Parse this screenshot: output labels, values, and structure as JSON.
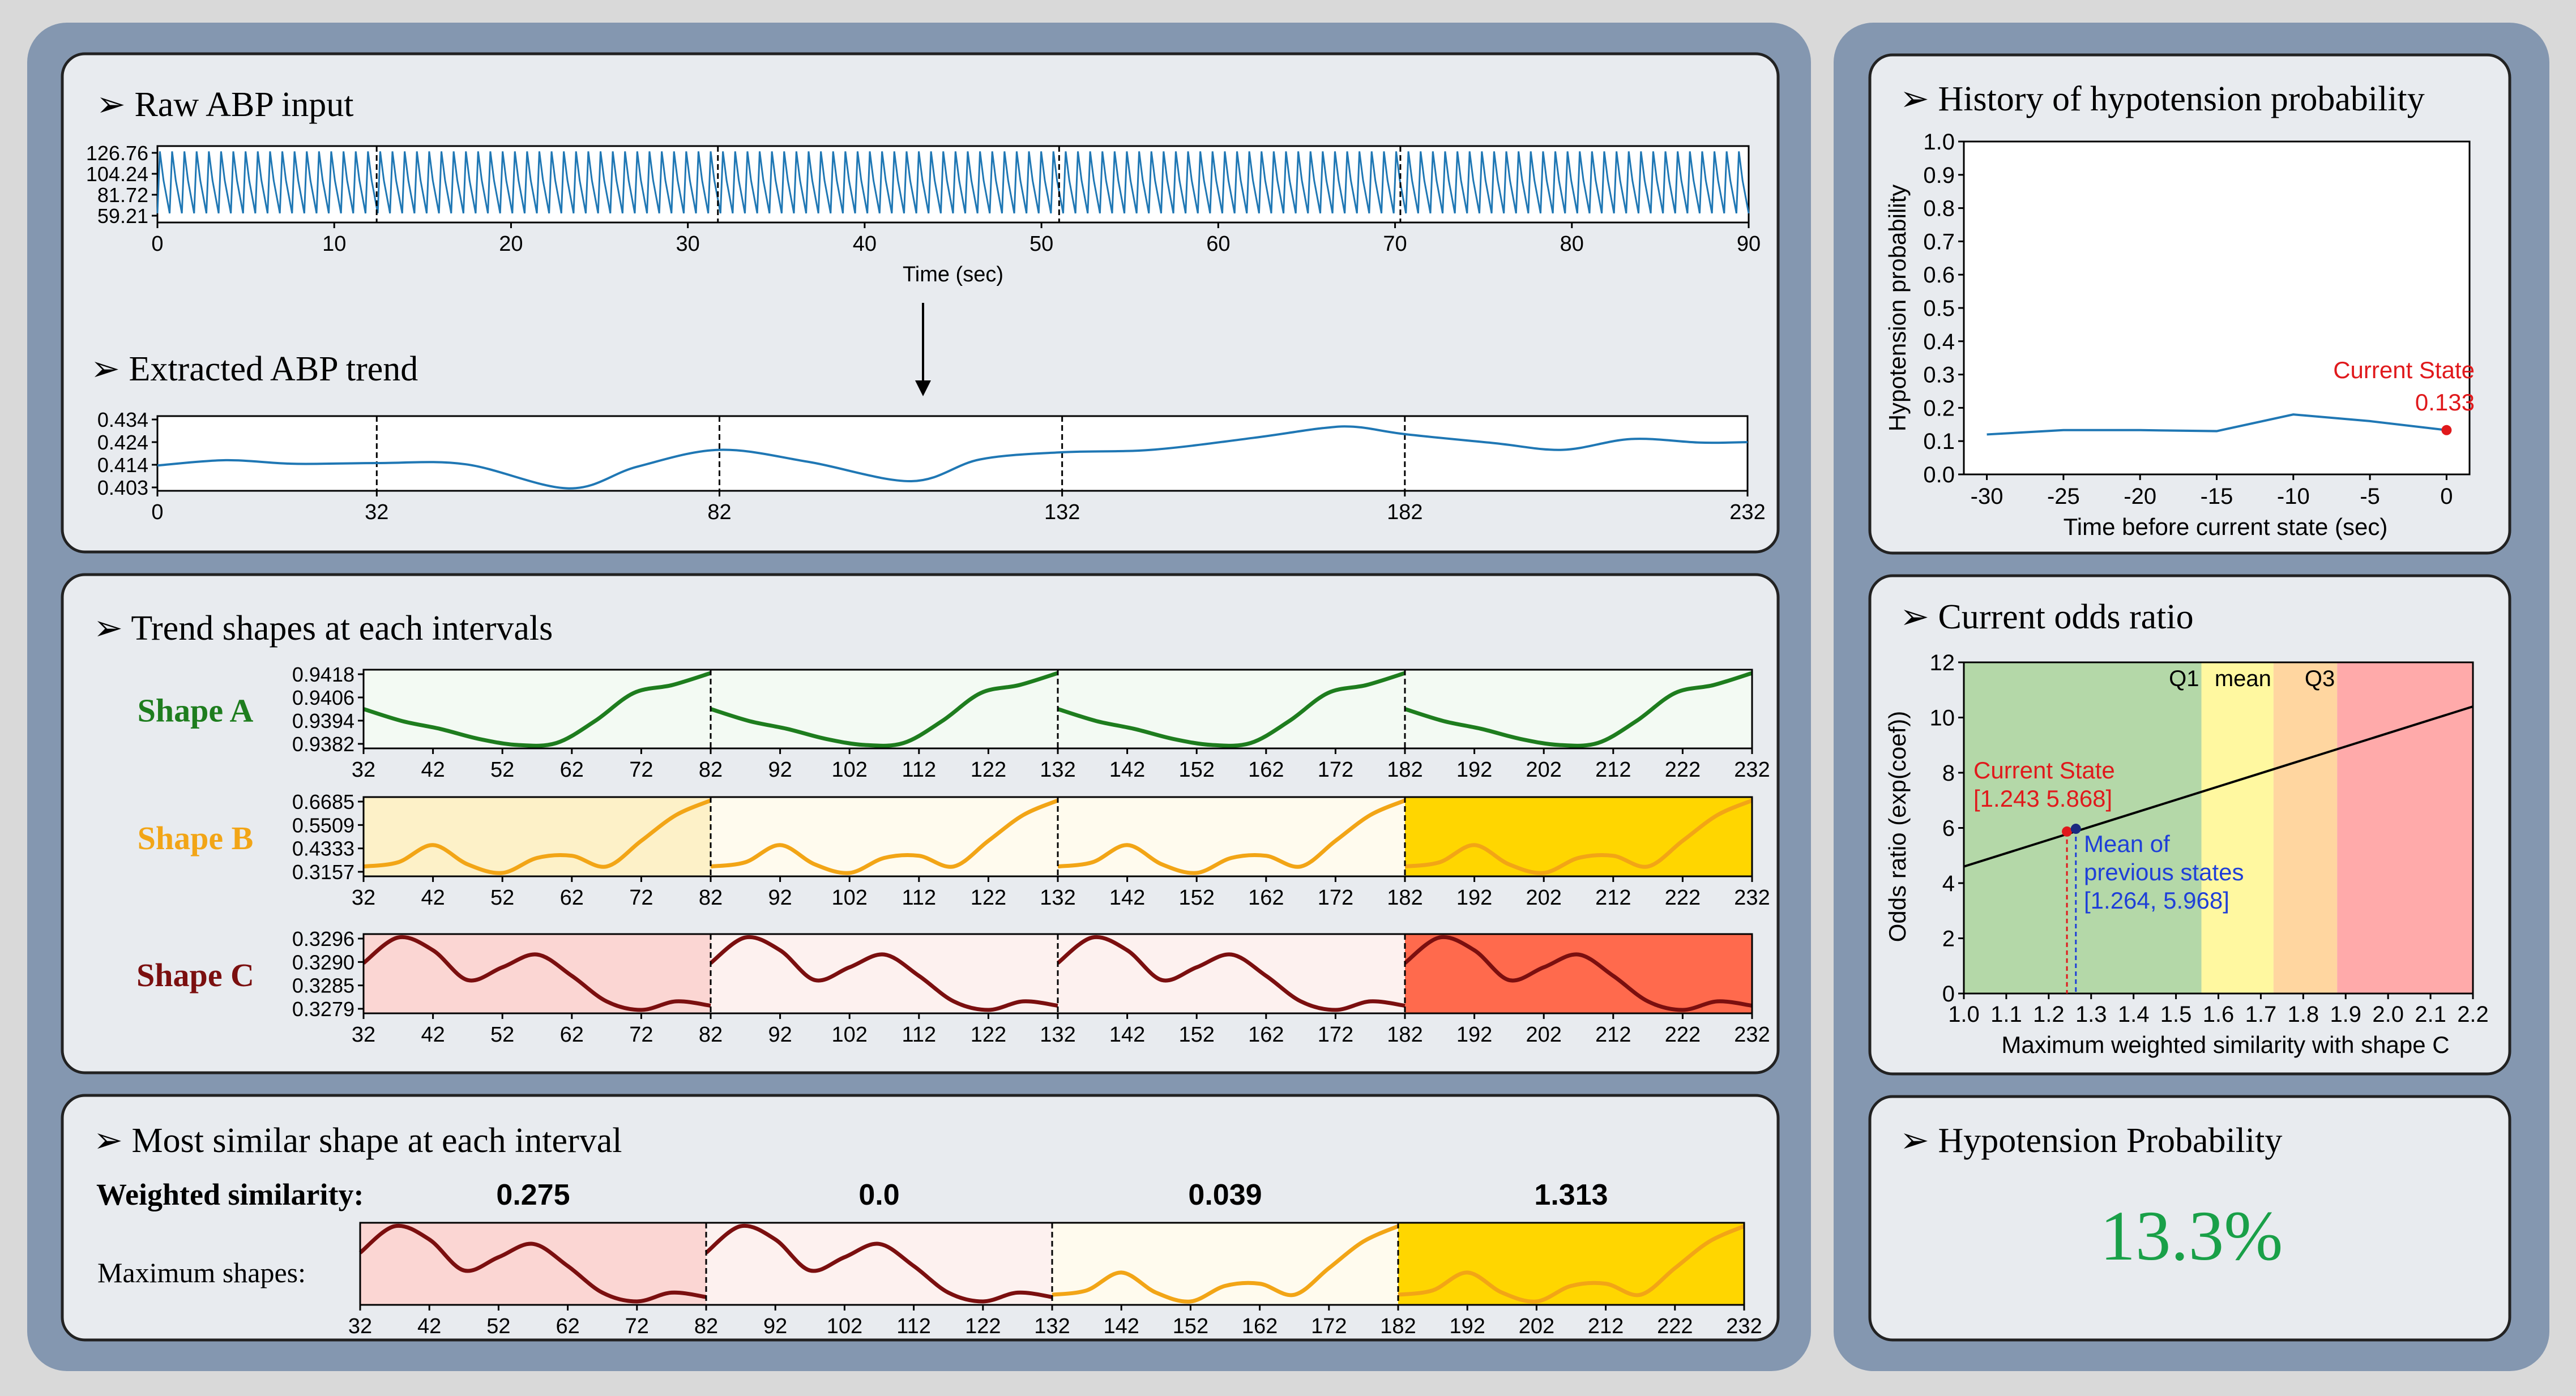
{
  "colors": {
    "outer_bg": "#d9d9d9",
    "frame_bg": "#8497b0",
    "panel_bg": "#e8ebef",
    "line_blue": "#1f77b4",
    "shape_a": "#1e7d1e",
    "shape_b": "#f2a516",
    "shape_c": "#7b0f0f",
    "gold": "#ffd600",
    "prob_green": "#19a048",
    "red": "#e0191c",
    "blue": "#1f3fd8"
  },
  "raw": {
    "title": "Raw ABP input",
    "xlabel": "Time (sec)",
    "yticks": [
      "126.76",
      "104.24",
      "81.72",
      "59.21"
    ],
    "xticks": [
      "0",
      "10",
      "20",
      "30",
      "40",
      "50",
      "60",
      "70",
      "80",
      "90"
    ],
    "chart_data": {
      "type": "line",
      "x_range": [
        0,
        90
      ],
      "y_range": [
        59.21,
        126.76
      ],
      "beats": 130,
      "interval_boundaries": [
        12.4,
        31.7,
        51.0,
        70.3
      ]
    }
  },
  "trend": {
    "title": "Extracted ABP trend",
    "xticks": [
      "0",
      "32",
      "82",
      "132",
      "182",
      "232"
    ],
    "yticks": [
      "0.434",
      "0.424",
      "0.414",
      "0.403"
    ],
    "chart_data": {
      "type": "line",
      "x_range": [
        0,
        232
      ],
      "y_range": [
        0.403,
        0.434
      ],
      "x": [
        0,
        10,
        20,
        32,
        45,
        60,
        70,
        82,
        95,
        110,
        120,
        132,
        145,
        160,
        170,
        175,
        182,
        195,
        205,
        215,
        225,
        232
      ],
      "y": [
        0.4135,
        0.4157,
        0.4142,
        0.4145,
        0.414,
        0.404,
        0.413,
        0.42,
        0.415,
        0.407,
        0.416,
        0.419,
        0.42,
        0.425,
        0.429,
        0.4295,
        0.4265,
        0.4228,
        0.42,
        0.4245,
        0.423,
        0.4232
      ]
    }
  },
  "shapes": {
    "title": "Trend shapes at each intervals",
    "xticks": [
      "32",
      "42",
      "52",
      "62",
      "72",
      "82",
      "92",
      "102",
      "112",
      "122",
      "132",
      "142",
      "152",
      "162",
      "172",
      "182",
      "192",
      "202",
      "212",
      "222",
      "232"
    ],
    "rows": [
      {
        "label": "Shape A",
        "yticks": [
          "0.9418",
          "0.9406",
          "0.9394",
          "0.9382"
        ],
        "color": "#1e7d1e",
        "bgs": [
          "#f3faf3",
          "#f3faf3",
          "#f3faf3",
          "#f3faf3"
        ],
        "y": [
          0.94,
          0.9394,
          0.939,
          0.9385,
          0.9382,
          0.9383,
          0.9394,
          0.9408,
          0.9412,
          0.9418
        ]
      },
      {
        "label": "Shape B",
        "yticks": [
          "0.6685",
          "0.5509",
          "0.4333",
          "0.3157"
        ],
        "color": "#f2a516",
        "bgs": [
          "#fdf1c8",
          "#fffbee",
          "#fffbee",
          "#ffd600"
        ],
        "y": [
          0.36,
          0.38,
          0.46,
          0.37,
          0.33,
          0.4,
          0.41,
          0.36,
          0.48,
          0.6,
          0.6685
        ]
      },
      {
        "label": "Shape C",
        "yticks": [
          "0.3296",
          "0.3290",
          "0.3285",
          "0.3279"
        ],
        "color": "#7b0f0f",
        "bgs": [
          "#fbd6d3",
          "#fdf1ef",
          "#fdf1ef",
          "#ff6a4d"
        ],
        "y": [
          0.329,
          0.3296,
          0.3293,
          0.3286,
          0.3289,
          0.3292,
          0.3287,
          0.3281,
          0.3279,
          0.3281,
          0.328
        ]
      }
    ]
  },
  "similar": {
    "title": "Most similar shape at each interval",
    "weighted_label": "Weighted similarity:",
    "weights": [
      "0.275",
      "0.0",
      "0.039",
      "1.313"
    ],
    "max_label": "Maximum shapes:",
    "xticks": [
      "32",
      "42",
      "52",
      "62",
      "72",
      "82",
      "92",
      "102",
      "112",
      "122",
      "132",
      "142",
      "152",
      "162",
      "172",
      "182",
      "192",
      "202",
      "212",
      "222",
      "232"
    ],
    "cells": [
      {
        "shape": "C",
        "bg": "#fbd6d3"
      },
      {
        "shape": "C",
        "bg": "#fdf1ef"
      },
      {
        "shape": "B",
        "bg": "#fffbee"
      },
      {
        "shape": "B",
        "bg": "#ffd600"
      }
    ]
  },
  "history": {
    "title": "History of hypotension probability",
    "ylabel": "Hypotension probability",
    "xlabel": "Time before current state (sec)",
    "yticks": [
      "1.0",
      "0.9",
      "0.8",
      "0.7",
      "0.6",
      "0.5",
      "0.4",
      "0.3",
      "0.2",
      "0.1",
      "0.0"
    ],
    "xticks": [
      "-30",
      "-25",
      "-20",
      "-15",
      "-10",
      "-5",
      "0"
    ],
    "current_label": "Current State",
    "current_value": "0.133",
    "chart_data": {
      "type": "line",
      "x_range": [
        -31.5,
        1.5
      ],
      "y_range": [
        0,
        1
      ],
      "x": [
        -30,
        -25,
        -20,
        -15,
        -10,
        -5,
        0
      ],
      "y": [
        0.12,
        0.133,
        0.133,
        0.13,
        0.18,
        0.16,
        0.133
      ]
    }
  },
  "odds": {
    "title": "Current odds ratio",
    "ylabel": "Odds ratio (exp(coef))",
    "xlabel": "Maximum weighted similarity with shape C",
    "yticks": [
      "12",
      "10",
      "8",
      "6",
      "4",
      "2",
      "0"
    ],
    "xticks": [
      "1.0",
      "1.1",
      "1.2",
      "1.3",
      "1.4",
      "1.5",
      "1.6",
      "1.7",
      "1.8",
      "1.9",
      "2.0",
      "2.1",
      "2.2"
    ],
    "q1_label": "Q1",
    "mean_label": "mean",
    "q3_label": "Q3",
    "current_label": "Current State",
    "current_coords": "[1.243 5.868]",
    "mean_prev_line1": "Mean of",
    "mean_prev_line2": "previous states",
    "mean_prev_coords": "[1.264, 5.968]",
    "chart_data": {
      "type": "line",
      "x_range": [
        1.0,
        2.2
      ],
      "y_range": [
        0,
        12
      ],
      "line": [
        [
          1.0,
          4.6
        ],
        [
          2.2,
          10.4
        ]
      ],
      "q1": 1.56,
      "mean": 1.73,
      "q3": 1.88,
      "current": [
        1.243,
        5.868
      ],
      "mean_prev": [
        1.264,
        5.968
      ],
      "zone_colors": [
        "#b4d8a8",
        "#fff8a0",
        "#ffd6a0",
        "#ffaaaa"
      ]
    }
  },
  "prob": {
    "title": "Hypotension Probability",
    "value": "13.3%"
  }
}
